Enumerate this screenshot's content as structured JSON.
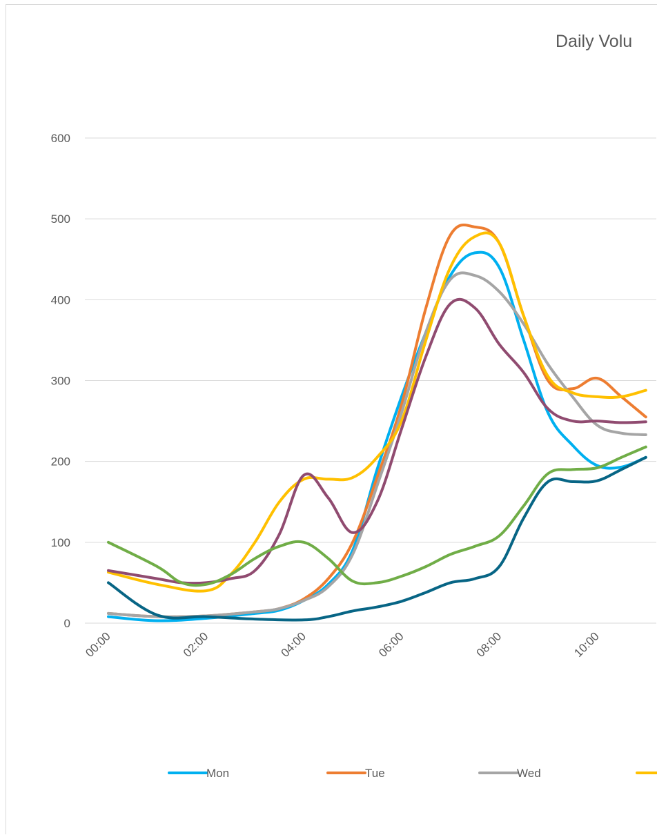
{
  "chart_data": {
    "type": "line",
    "title": "Daily Volu",
    "xlabel": "",
    "ylabel": "",
    "ylim": [
      0,
      600
    ],
    "yticks": [
      0,
      100,
      200,
      300,
      400,
      500,
      600
    ],
    "xlim": [
      0,
      11
    ],
    "xticks": [
      "00:00",
      "02:00",
      "04:00",
      "06:00",
      "08:00",
      "10:00"
    ],
    "grid": "horizontal",
    "legend": "bottom",
    "smooth": true,
    "series": [
      {
        "name": "Mon",
        "color": "#00b0f0",
        "x": [
          0,
          1,
          2,
          3,
          3.5,
          4,
          4.5,
          5,
          5.5,
          6,
          6.5,
          7,
          7.5,
          8,
          8.5,
          9,
          9.5,
          10,
          10.5,
          11
        ],
        "values": [
          8,
          3,
          6,
          12,
          16,
          28,
          48,
          90,
          190,
          280,
          360,
          430,
          458,
          440,
          350,
          260,
          220,
          195,
          193,
          205
        ]
      },
      {
        "name": "Tue",
        "color": "#ed7d31",
        "x": [
          0,
          1,
          2,
          3,
          3.5,
          4,
          4.5,
          5,
          5.5,
          6,
          6.5,
          7,
          7.5,
          8,
          8.5,
          9,
          9.5,
          10,
          10.5,
          11
        ],
        "values": [
          12,
          8,
          9,
          14,
          18,
          30,
          55,
          100,
          180,
          270,
          390,
          480,
          490,
          470,
          380,
          300,
          290,
          303,
          280,
          255
        ]
      },
      {
        "name": "Wed",
        "color": "#a5a5a5",
        "x": [
          0,
          1,
          2,
          3,
          3.5,
          4,
          4.5,
          5,
          5.5,
          6,
          6.5,
          7,
          7.5,
          8,
          8.5,
          9,
          9.5,
          10,
          10.5,
          11
        ],
        "values": [
          12,
          8,
          9,
          14,
          18,
          28,
          45,
          85,
          170,
          260,
          360,
          425,
          430,
          410,
          370,
          320,
          280,
          245,
          235,
          233
        ]
      },
      {
        "color": "#ffc000",
        "x": [
          0,
          1,
          2,
          2.5,
          3,
          3.5,
          4,
          4.5,
          5,
          5.5,
          6,
          6.5,
          7,
          7.5,
          8,
          8.5,
          9,
          9.5,
          10,
          10.5,
          11
        ],
        "values": [
          63,
          48,
          40,
          60,
          100,
          150,
          178,
          178,
          180,
          205,
          250,
          350,
          440,
          478,
          470,
          380,
          305,
          285,
          280,
          280,
          288
        ]
      },
      {
        "color": "#904b70",
        "x": [
          0,
          1,
          1.5,
          2,
          2.5,
          3,
          3.5,
          4,
          4.5,
          5,
          5.5,
          6,
          6.5,
          7,
          7.5,
          8,
          8.5,
          9,
          9.5,
          10,
          10.5,
          11
        ],
        "values": [
          65,
          55,
          50,
          50,
          55,
          65,
          110,
          183,
          155,
          112,
          150,
          240,
          330,
          395,
          390,
          345,
          310,
          265,
          250,
          250,
          248,
          249
        ]
      },
      {
        "color": "#70ad47",
        "x": [
          0,
          1,
          1.5,
          2,
          2.5,
          3,
          3.5,
          4,
          4.5,
          5,
          5.5,
          6,
          6.5,
          7,
          7.5,
          8,
          8.5,
          9,
          9.5,
          10,
          10.5,
          11
        ],
        "values": [
          100,
          70,
          50,
          48,
          60,
          80,
          95,
          100,
          80,
          52,
          50,
          58,
          70,
          85,
          95,
          108,
          145,
          185,
          190,
          192,
          205,
          218
        ]
      },
      {
        "color": "#076585",
        "x": [
          0,
          1,
          2,
          3,
          4,
          4.5,
          5,
          5.5,
          6,
          6.5,
          7,
          7.5,
          8,
          8.5,
          9,
          9.5,
          10,
          10.5,
          11
        ],
        "values": [
          50,
          10,
          8,
          5,
          4,
          8,
          15,
          20,
          27,
          38,
          50,
          55,
          70,
          130,
          175,
          175,
          176,
          190,
          205
        ]
      }
    ]
  }
}
